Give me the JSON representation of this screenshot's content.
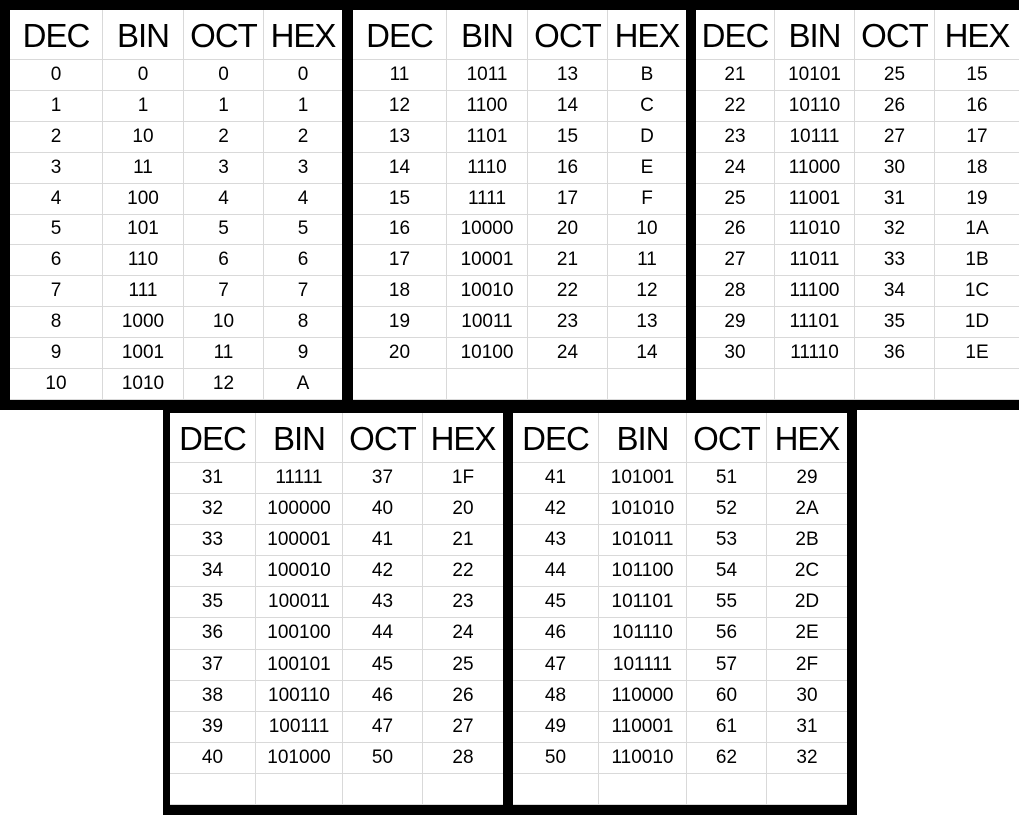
{
  "tables": [
    {
      "headers": [
        "DEC",
        "BIN",
        "OCT",
        "HEX"
      ],
      "rows": [
        [
          "0",
          "0",
          "0",
          "0"
        ],
        [
          "1",
          "1",
          "1",
          "1"
        ],
        [
          "2",
          "10",
          "2",
          "2"
        ],
        [
          "3",
          "11",
          "3",
          "3"
        ],
        [
          "4",
          "100",
          "4",
          "4"
        ],
        [
          "5",
          "101",
          "5",
          "5"
        ],
        [
          "6",
          "110",
          "6",
          "6"
        ],
        [
          "7",
          "111",
          "7",
          "7"
        ],
        [
          "8",
          "1000",
          "10",
          "8"
        ],
        [
          "9",
          "1001",
          "11",
          "9"
        ],
        [
          "10",
          "1010",
          "12",
          "A"
        ]
      ]
    },
    {
      "headers": [
        "DEC",
        "BIN",
        "OCT",
        "HEX"
      ],
      "rows": [
        [
          "11",
          "1011",
          "13",
          "B"
        ],
        [
          "12",
          "1100",
          "14",
          "C"
        ],
        [
          "13",
          "1101",
          "15",
          "D"
        ],
        [
          "14",
          "1110",
          "16",
          "E"
        ],
        [
          "15",
          "1111",
          "17",
          "F"
        ],
        [
          "16",
          "10000",
          "20",
          "10"
        ],
        [
          "17",
          "10001",
          "21",
          "11"
        ],
        [
          "18",
          "10010",
          "22",
          "12"
        ],
        [
          "19",
          "10011",
          "23",
          "13"
        ],
        [
          "20",
          "10100",
          "24",
          "14"
        ],
        [
          "",
          "",
          "",
          ""
        ]
      ]
    },
    {
      "headers": [
        "DEC",
        "BIN",
        "OCT",
        "HEX"
      ],
      "rows": [
        [
          "21",
          "10101",
          "25",
          "15"
        ],
        [
          "22",
          "10110",
          "26",
          "16"
        ],
        [
          "23",
          "10111",
          "27",
          "17"
        ],
        [
          "24",
          "11000",
          "30",
          "18"
        ],
        [
          "25",
          "11001",
          "31",
          "19"
        ],
        [
          "26",
          "11010",
          "32",
          "1A"
        ],
        [
          "27",
          "11011",
          "33",
          "1B"
        ],
        [
          "28",
          "11100",
          "34",
          "1C"
        ],
        [
          "29",
          "11101",
          "35",
          "1D"
        ],
        [
          "30",
          "11110",
          "36",
          "1E"
        ],
        [
          "",
          "",
          "",
          ""
        ]
      ]
    },
    {
      "headers": [
        "DEC",
        "BIN",
        "OCT",
        "HEX"
      ],
      "rows": [
        [
          "31",
          "11111",
          "37",
          "1F"
        ],
        [
          "32",
          "100000",
          "40",
          "20"
        ],
        [
          "33",
          "100001",
          "41",
          "21"
        ],
        [
          "34",
          "100010",
          "42",
          "22"
        ],
        [
          "35",
          "100011",
          "43",
          "23"
        ],
        [
          "36",
          "100100",
          "44",
          "24"
        ],
        [
          "37",
          "100101",
          "45",
          "25"
        ],
        [
          "38",
          "100110",
          "46",
          "26"
        ],
        [
          "39",
          "100111",
          "47",
          "27"
        ],
        [
          "40",
          "101000",
          "50",
          "28"
        ],
        [
          "",
          "",
          "",
          ""
        ]
      ]
    },
    {
      "headers": [
        "DEC",
        "BIN",
        "OCT",
        "HEX"
      ],
      "rows": [
        [
          "41",
          "101001",
          "51",
          "29"
        ],
        [
          "42",
          "101010",
          "52",
          "2A"
        ],
        [
          "43",
          "101011",
          "53",
          "2B"
        ],
        [
          "44",
          "101100",
          "54",
          "2C"
        ],
        [
          "45",
          "101101",
          "55",
          "2D"
        ],
        [
          "46",
          "101110",
          "56",
          "2E"
        ],
        [
          "47",
          "101111",
          "57",
          "2F"
        ],
        [
          "48",
          "110000",
          "60",
          "30"
        ],
        [
          "49",
          "110001",
          "61",
          "31"
        ],
        [
          "50",
          "110010",
          "62",
          "32"
        ],
        [
          "",
          "",
          "",
          ""
        ]
      ]
    }
  ]
}
